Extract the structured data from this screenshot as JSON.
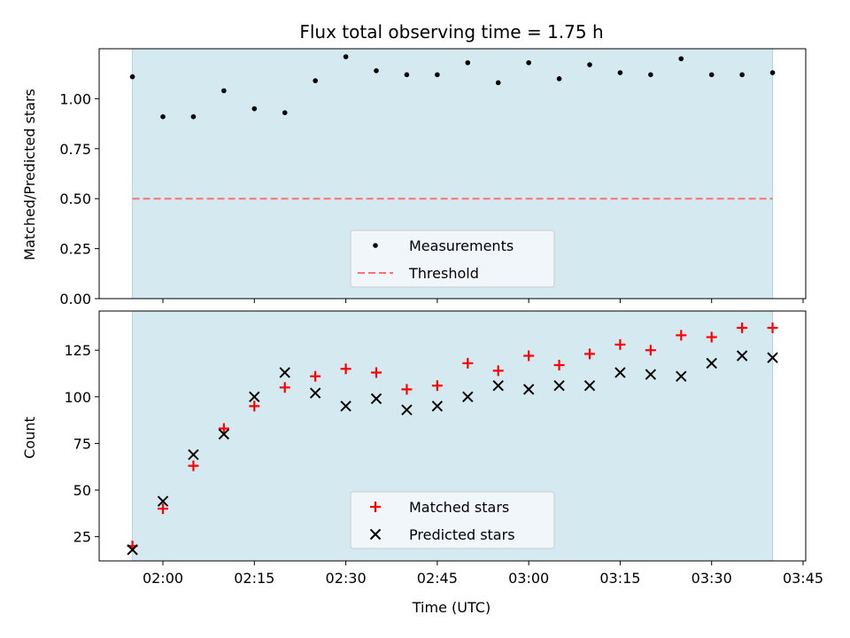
{
  "chart_data": [
    {
      "type": "scatter",
      "title": "Flux total observing time = 1.75 h",
      "xlabel": "",
      "ylabel": "Matched/Predicted stars",
      "ylim": [
        0,
        1.25
      ],
      "yticks": [
        "0.00",
        "0.25",
        "0.50",
        "0.75",
        "1.00"
      ],
      "grid": false,
      "legend_position": "lower-center",
      "shaded_span": [
        "01:55",
        "03:40"
      ],
      "x": [
        "01:55",
        "02:00",
        "02:05",
        "02:10",
        "02:15",
        "02:20",
        "02:25",
        "02:30",
        "02:35",
        "02:40",
        "02:45",
        "02:50",
        "02:55",
        "03:00",
        "03:05",
        "03:10",
        "03:15",
        "03:20",
        "03:25",
        "03:30",
        "03:35",
        "03:40"
      ],
      "series": [
        {
          "name": "Measurements",
          "marker": "dot",
          "color": "#000000",
          "values": [
            1.11,
            0.91,
            0.91,
            1.04,
            0.95,
            0.93,
            1.09,
            1.21,
            1.14,
            1.12,
            1.12,
            1.18,
            1.08,
            1.18,
            1.1,
            1.17,
            1.13,
            1.12,
            1.2,
            1.12,
            1.12,
            1.13
          ]
        },
        {
          "name": "Threshold",
          "style": "dashed",
          "color": "#ff7070",
          "value": 0.5
        }
      ]
    },
    {
      "type": "scatter",
      "xlabel": "Time (UTC)",
      "ylabel": "Count",
      "ylim": [
        12,
        146
      ],
      "yticks": [
        "25",
        "50",
        "75",
        "100",
        "125"
      ],
      "xticks": [
        "02:00",
        "02:15",
        "02:30",
        "02:45",
        "03:00",
        "03:15",
        "03:30",
        "03:45"
      ],
      "grid": false,
      "legend_position": "lower-center",
      "shaded_span": [
        "01:55",
        "03:40"
      ],
      "x": [
        "01:55",
        "02:00",
        "02:05",
        "02:10",
        "02:15",
        "02:20",
        "02:25",
        "02:30",
        "02:35",
        "02:40",
        "02:45",
        "02:50",
        "02:55",
        "03:00",
        "03:05",
        "03:10",
        "03:15",
        "03:20",
        "03:25",
        "03:30",
        "03:35",
        "03:40"
      ],
      "series": [
        {
          "name": "Matched stars",
          "marker": "plus",
          "color": "#ff0000",
          "values": [
            20,
            40,
            63,
            83,
            95,
            105,
            111,
            115,
            113,
            104,
            106,
            118,
            114,
            122,
            117,
            123,
            128,
            125,
            133,
            132,
            137,
            137
          ]
        },
        {
          "name": "Predicted stars",
          "marker": "x",
          "color": "#000000",
          "values": [
            18,
            44,
            69,
            80,
            100,
            113,
            102,
            95,
            99,
            93,
            95,
            100,
            106,
            104,
            106,
            106,
            113,
            112,
            111,
            118,
            122,
            121
          ]
        }
      ]
    }
  ],
  "colors": {
    "shade": "#d4eaf0",
    "shade_edge": "#a8d8e0",
    "legend_bg": "#f4f8fb",
    "legend_edge": "#cccccc"
  }
}
